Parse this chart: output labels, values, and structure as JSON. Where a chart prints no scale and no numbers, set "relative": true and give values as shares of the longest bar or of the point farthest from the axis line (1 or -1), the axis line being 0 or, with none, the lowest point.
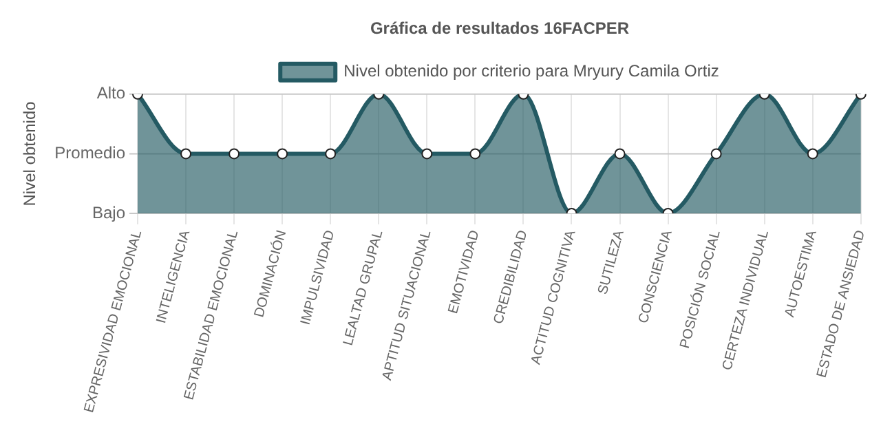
{
  "chart_data": {
    "type": "area",
    "title": "Gráfica de resultados 16FACPER",
    "ylabel": "Nivel obtenido",
    "categories": [
      "EXPRESIVIDAD EMOCIONAL",
      "INTELIGENCIA",
      "ESTABILIDAD EMOCIONAL",
      "DOMINACIÓN",
      "IMPULSIVIDAD",
      "LEALTAD GRUPAL",
      "APTITUD SITUACIONAL",
      "EMOTIVIDAD",
      "CREDIBILIDAD",
      "ACTITUD COGNITIVA",
      "SUTILEZA",
      "CONSCIENCIA",
      "POSICIÓN SOCIAL",
      "CERTEZA INDIVIDUAL",
      "AUTOESTIMA",
      "ESTADO DE ANSIEDAD"
    ],
    "series": [
      {
        "name": "Nivel obtenido por criterio para Mryury Camila Ortiz",
        "color": "#245a63",
        "values": [
          1,
          0.5,
          0.5,
          0.5,
          0.5,
          1,
          0.5,
          0.5,
          1,
          0,
          0.5,
          0,
          0.5,
          1,
          0.5,
          1
        ]
      }
    ],
    "relative": true,
    "ref_lines": [
      {
        "axis": "y",
        "value": 0,
        "label": "Bajo",
        "color": "#c8c8c8"
      },
      {
        "axis": "y",
        "value": 0.5,
        "label": "Promedio",
        "color": "#c8c8c8"
      },
      {
        "axis": "y",
        "value": 1,
        "label": "Alto",
        "color": "#c8c8c8"
      }
    ],
    "grid": "x",
    "legend": "top",
    "marker": "circle",
    "line_style": "solid"
  }
}
